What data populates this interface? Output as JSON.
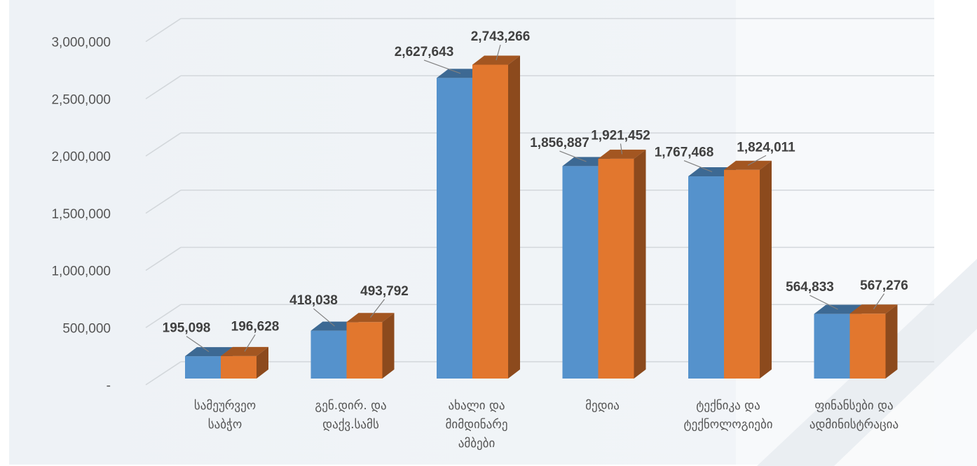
{
  "chart_data": {
    "type": "bar",
    "style": "3d-clustered",
    "categories": [
      [
        "სამეურვეო",
        "საბჭო"
      ],
      [
        "გენ.დირ. და",
        "დაქვ.სამს"
      ],
      [
        "ახალი და",
        "მიმდინარე",
        "ამბები"
      ],
      [
        "მედია"
      ],
      [
        "ტექნიკა და",
        "ტექნოლოგიები"
      ],
      [
        "ფინანსები და",
        "ადმინისტრაცია"
      ]
    ],
    "series": [
      {
        "color": "#5592CC",
        "values": [
          195098,
          418038,
          2627643,
          1856887,
          1767468,
          564833
        ]
      },
      {
        "color": "#E2772E",
        "values": [
          196628,
          493792,
          2743266,
          1921452,
          1824011,
          567276
        ]
      }
    ],
    "data_labels": [
      [
        "195,098",
        "418,038",
        "2,627,643",
        "1,856,887",
        "1,767,468",
        "564,833"
      ],
      [
        "196,628",
        "493,792",
        "2,743,266",
        "1,921,452",
        "1,824,011",
        "567,276"
      ]
    ],
    "y_ticks": [
      {
        "value": 0,
        "label": "-"
      },
      {
        "value": 500000,
        "label": "500,000"
      },
      {
        "value": 1000000,
        "label": "1,000,000"
      },
      {
        "value": 1500000,
        "label": "1,500,000"
      },
      {
        "value": 2000000,
        "label": "2,000,000"
      },
      {
        "value": 2500000,
        "label": "2,500,000"
      },
      {
        "value": 3000000,
        "label": "3,000,000"
      }
    ],
    "ylim": [
      0,
      3000000
    ],
    "grid": true,
    "legend": "none",
    "title": "",
    "xlabel": "",
    "ylabel": ""
  }
}
